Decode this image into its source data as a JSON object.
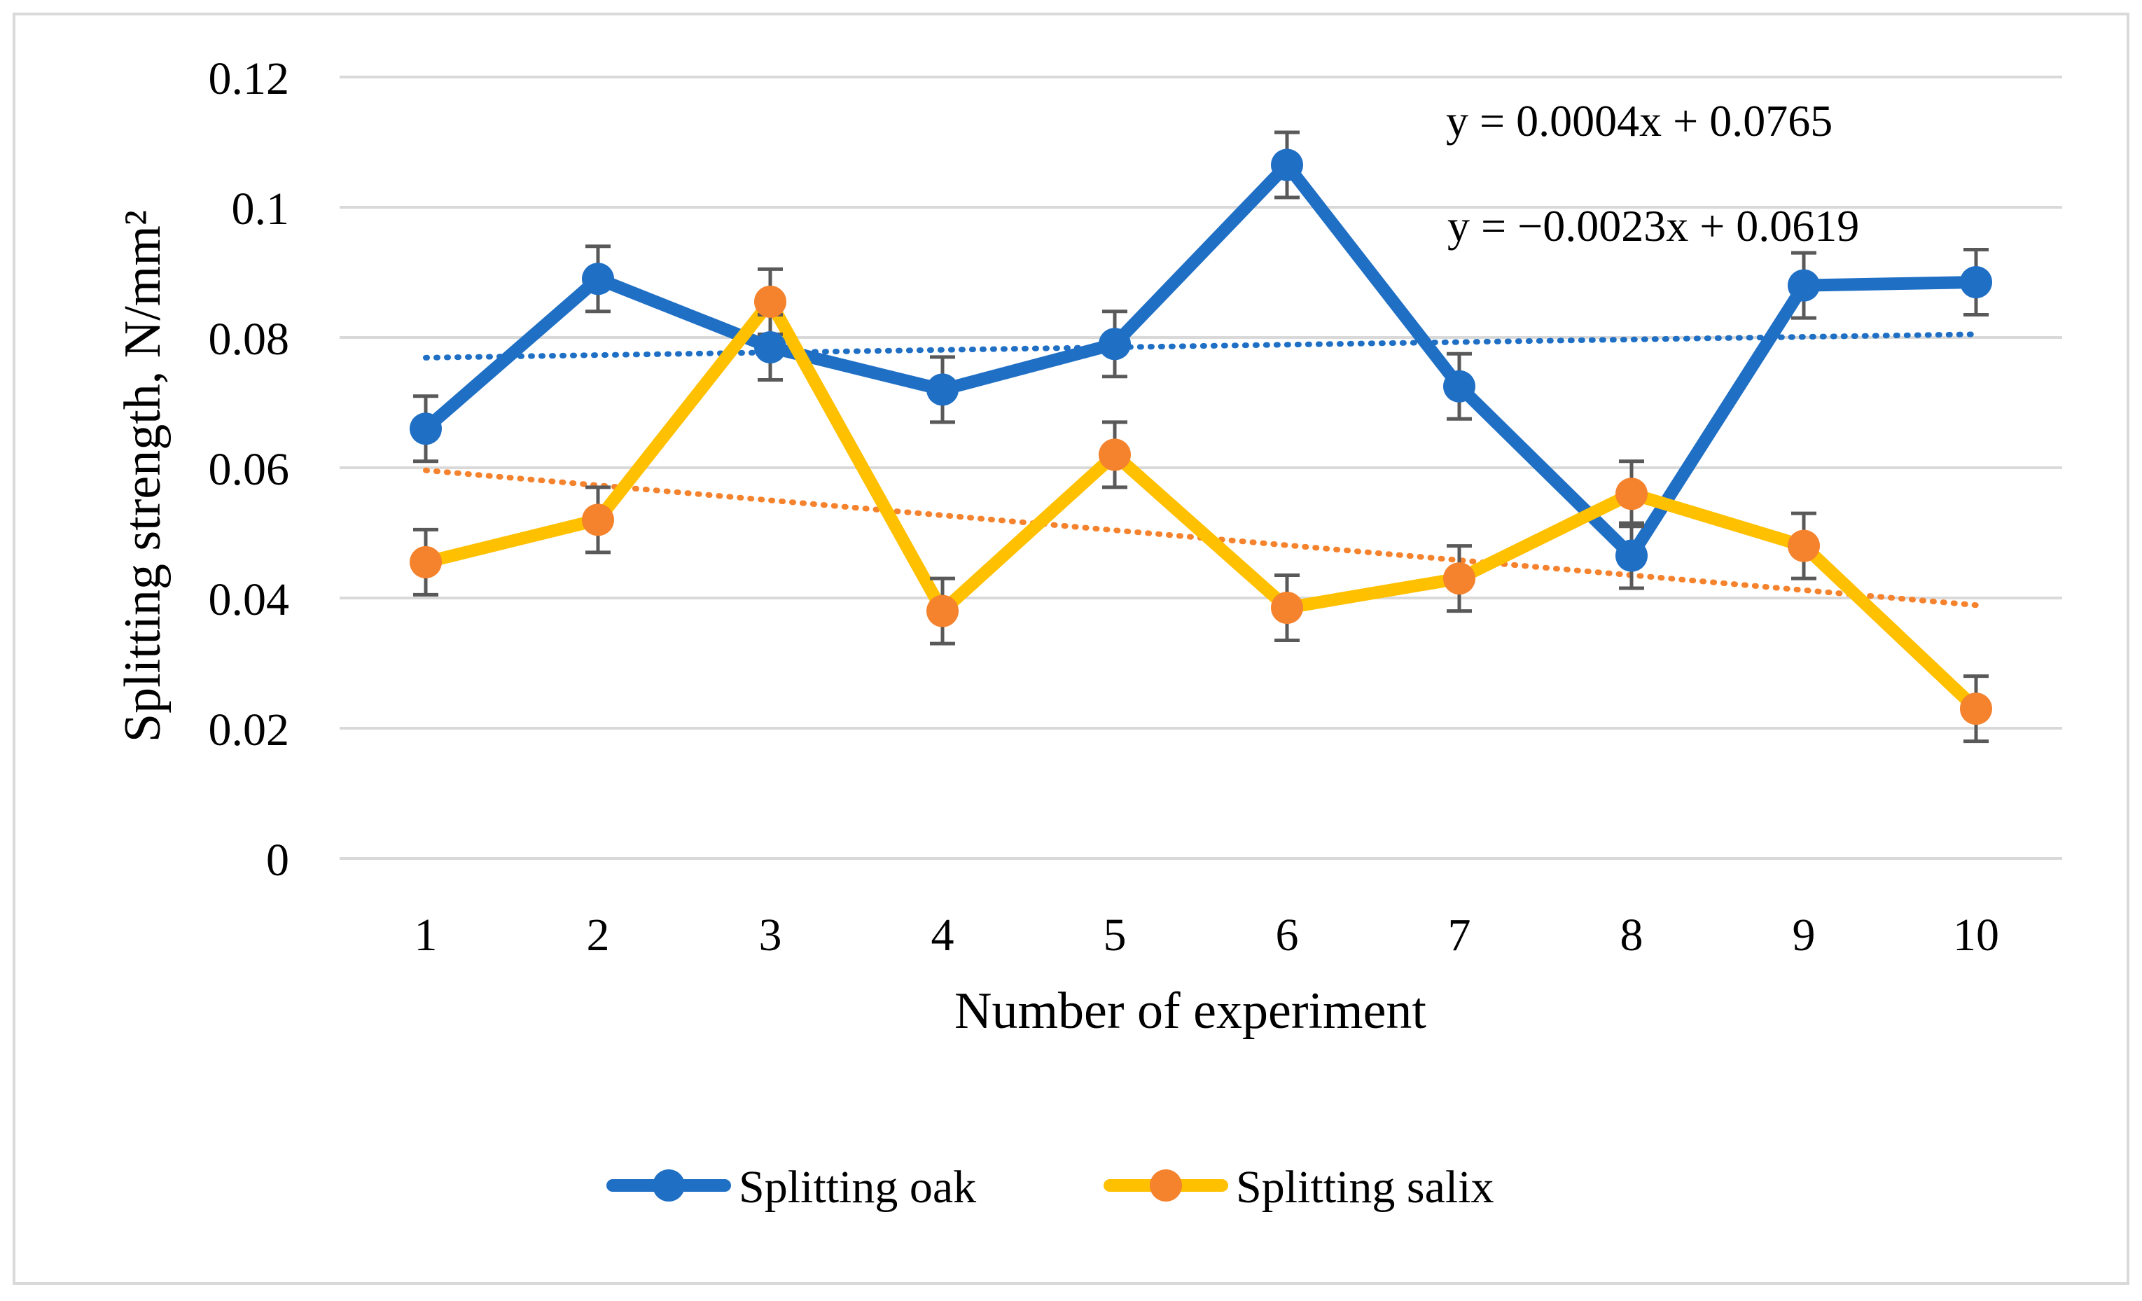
{
  "chart_data": {
    "type": "line",
    "title": "",
    "xlabel": "Number of experiment",
    "ylabel": "Splitting strength, N/mm²",
    "categories": [
      "1",
      "2",
      "3",
      "4",
      "5",
      "6",
      "7",
      "8",
      "9",
      "10"
    ],
    "ylim": [
      0,
      0.12
    ],
    "yticks": [
      0,
      0.02,
      0.04,
      0.06,
      0.08,
      0.1,
      0.12
    ],
    "ytick_labels": [
      "0",
      "0.02",
      "0.04",
      "0.06",
      "0.08",
      "0.1",
      "0.12"
    ],
    "grid": true,
    "legend_position": "bottom",
    "error_bar": 0.005,
    "series": [
      {
        "name": "Splitting oak",
        "line_color": "#1F6FC5",
        "marker_color": "#1F6FC5",
        "trend_color": "#1F6FC5",
        "values": [
          0.066,
          0.089,
          0.0785,
          0.072,
          0.079,
          0.1065,
          0.0725,
          0.0465,
          0.088,
          0.0885
        ],
        "trendline": {
          "slope": 0.0004,
          "intercept": 0.0765,
          "label": "y = 0.0004x + 0.0765"
        }
      },
      {
        "name": "Splitting salix",
        "line_color": "#FFC000",
        "marker_color": "#F5822D",
        "trend_color": "#F5822D",
        "values": [
          0.0455,
          0.052,
          0.0855,
          0.038,
          0.062,
          0.0385,
          0.043,
          0.056,
          0.048,
          0.023
        ],
        "trendline": {
          "slope": -0.0023,
          "intercept": 0.0619,
          "label": "y = −0.0023x + 0.0619"
        }
      }
    ]
  }
}
